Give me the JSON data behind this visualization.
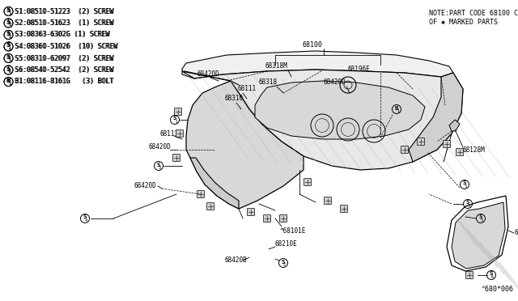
{
  "bg_color": "#ffffff",
  "line_color": "#000000",
  "text_color": "#000000",
  "fig_width": 6.4,
  "fig_height": 3.72,
  "dpi": 100,
  "legend": [
    {
      "prefix": "S",
      "num": "1",
      "text": ":08510-51223  (2) SCREW"
    },
    {
      "prefix": "S",
      "num": "2",
      "text": ":08510-51623  (1) SCREW"
    },
    {
      "prefix": "S",
      "num": "3",
      "text": ":08363-6302G (1) SCREW"
    },
    {
      "prefix": "S",
      "num": "4",
      "text": ":08360-51026  (10) SCREW"
    },
    {
      "prefix": "S",
      "num": "5",
      "text": ":08310-62097  (2) SCREW"
    },
    {
      "prefix": "S",
      "num": "6",
      "text": ":08540-52542  (2) SCREW"
    },
    {
      "prefix": "B",
      "num": "1",
      "text": ":08116-8161G   (3) BOLT"
    }
  ],
  "note_line1": "NOTE:PART CODE 68100 CONSISTS",
  "note_line2": "OF ✱ MARKED PARTS",
  "watermark": "^680*006"
}
